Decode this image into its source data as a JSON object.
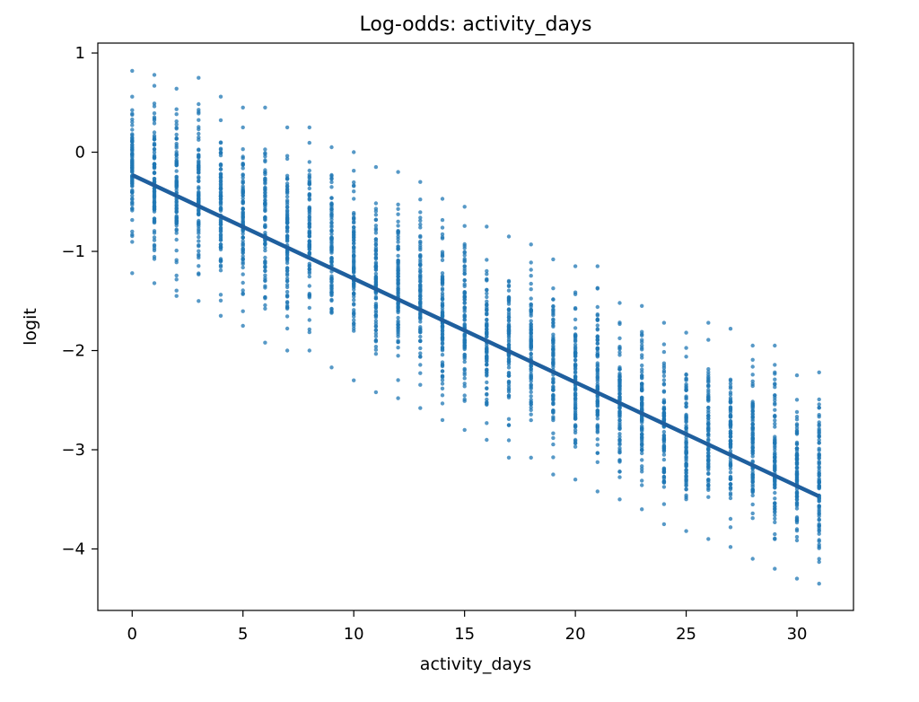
{
  "chart_data": {
    "type": "scatter",
    "title": "Log-odds: activity_days",
    "xlabel": "activity_days",
    "ylabel": "logit",
    "xlim": [
      -1.55,
      32.55
    ],
    "ylim": [
      -4.62,
      1.1
    ],
    "xticks": [
      0,
      5,
      10,
      15,
      20,
      25,
      30
    ],
    "xtick_labels": [
      "0",
      "5",
      "10",
      "15",
      "20",
      "25",
      "30"
    ],
    "yticks": [
      1,
      0,
      -1,
      -2,
      -3,
      -4
    ],
    "ytick_labels": [
      "1",
      "0",
      "−1",
      "−2",
      "−3",
      "−4"
    ],
    "grid": false,
    "legend": "none",
    "colors": {
      "points": "#1f77b4",
      "line": "#1f5f9e"
    },
    "series": [
      {
        "kind": "points",
        "x": [
          0,
          1,
          2,
          3,
          4,
          5,
          6,
          7,
          8,
          9,
          10,
          11,
          12,
          13,
          14,
          15,
          16,
          17,
          18,
          19,
          20,
          21,
          22,
          23,
          24,
          25,
          26,
          27,
          28,
          29,
          30,
          31
        ],
        "y_min": [
          -1.22,
          -1.32,
          -1.45,
          -1.5,
          -1.65,
          -1.75,
          -1.92,
          -2.0,
          -2.0,
          -2.17,
          -2.3,
          -2.42,
          -2.48,
          -2.58,
          -2.7,
          -2.8,
          -2.9,
          -3.08,
          -3.08,
          -3.25,
          -3.3,
          -3.42,
          -3.5,
          -3.6,
          -3.75,
          -3.82,
          -3.9,
          -3.98,
          -4.1,
          -4.2,
          -4.3,
          -4.35
        ],
        "y_max": [
          0.82,
          0.78,
          0.64,
          0.75,
          0.56,
          0.45,
          0.45,
          0.25,
          0.25,
          0.05,
          0.0,
          -0.15,
          -0.2,
          -0.3,
          -0.47,
          -0.55,
          -0.75,
          -0.85,
          -0.93,
          -1.08,
          -1.15,
          -1.15,
          -1.52,
          -1.55,
          -1.72,
          -1.82,
          -1.72,
          -1.78,
          -1.95,
          -1.95,
          -2.25,
          -2.22
        ]
      },
      {
        "kind": "line",
        "x": [
          0,
          31
        ],
        "y": [
          -0.23,
          -3.47
        ]
      }
    ]
  }
}
